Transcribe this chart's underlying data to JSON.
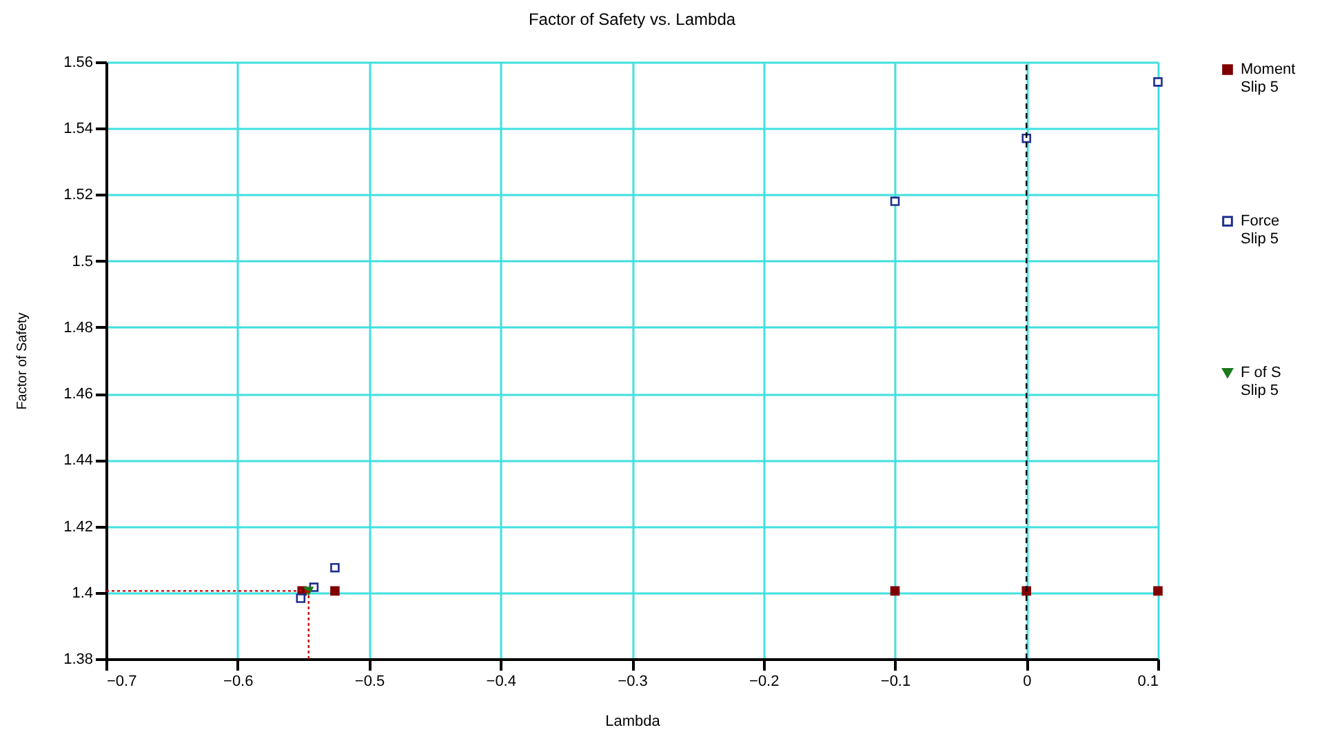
{
  "chart_data": {
    "type": "scatter",
    "title": "Factor of Safety vs. Lambda",
    "xlabel": "Lambda",
    "ylabel": "Factor of Safety",
    "series": [
      {
        "name": "Moment\nSlip 5",
        "color": "#800000",
        "marker": "square",
        "x": [
          -0.551,
          -0.526,
          -0.1,
          0,
          0.1
        ],
        "values": [
          1.4005,
          1.4005,
          1.4005,
          1.4005,
          1.4005
        ]
      },
      {
        "name": "Force\nSlip 5",
        "color": "#1f2f8f",
        "marker": "square",
        "x": [
          -0.552,
          -0.542,
          -0.526,
          -0.1,
          0,
          0.1
        ],
        "values": [
          1.3983,
          1.4016,
          1.4075,
          1.518,
          1.537,
          1.554
        ]
      },
      {
        "name": "F of S\nSlip 5",
        "color": "#1a7a1a",
        "marker": "triangle",
        "x": [
          -0.546
        ],
        "values": [
          1.4005
        ]
      }
    ],
    "xlim": [
      -0.7,
      0.1
    ],
    "xticks": [
      -0.7,
      -0.6,
      -0.5,
      -0.4,
      -0.3,
      -0.2,
      -0.1,
      0,
      0.1
    ],
    "ylim": [
      1.38,
      1.56
    ],
    "yticks": [
      1.38,
      1.4,
      1.42,
      1.44,
      1.46,
      1.48,
      1.5,
      1.52,
      1.54,
      1.56
    ],
    "ref_lines": [
      {
        "axis": "x",
        "value": 0,
        "color": "#000000",
        "line_style": "dashed"
      },
      {
        "axis": "x",
        "value": -0.546,
        "color": "#cc0000",
        "line_style": "dotted"
      },
      {
        "axis": "y",
        "value": 1.4005,
        "color": "#cc0000",
        "line_style": "dotted"
      }
    ],
    "grid": true,
    "legend": "right"
  }
}
